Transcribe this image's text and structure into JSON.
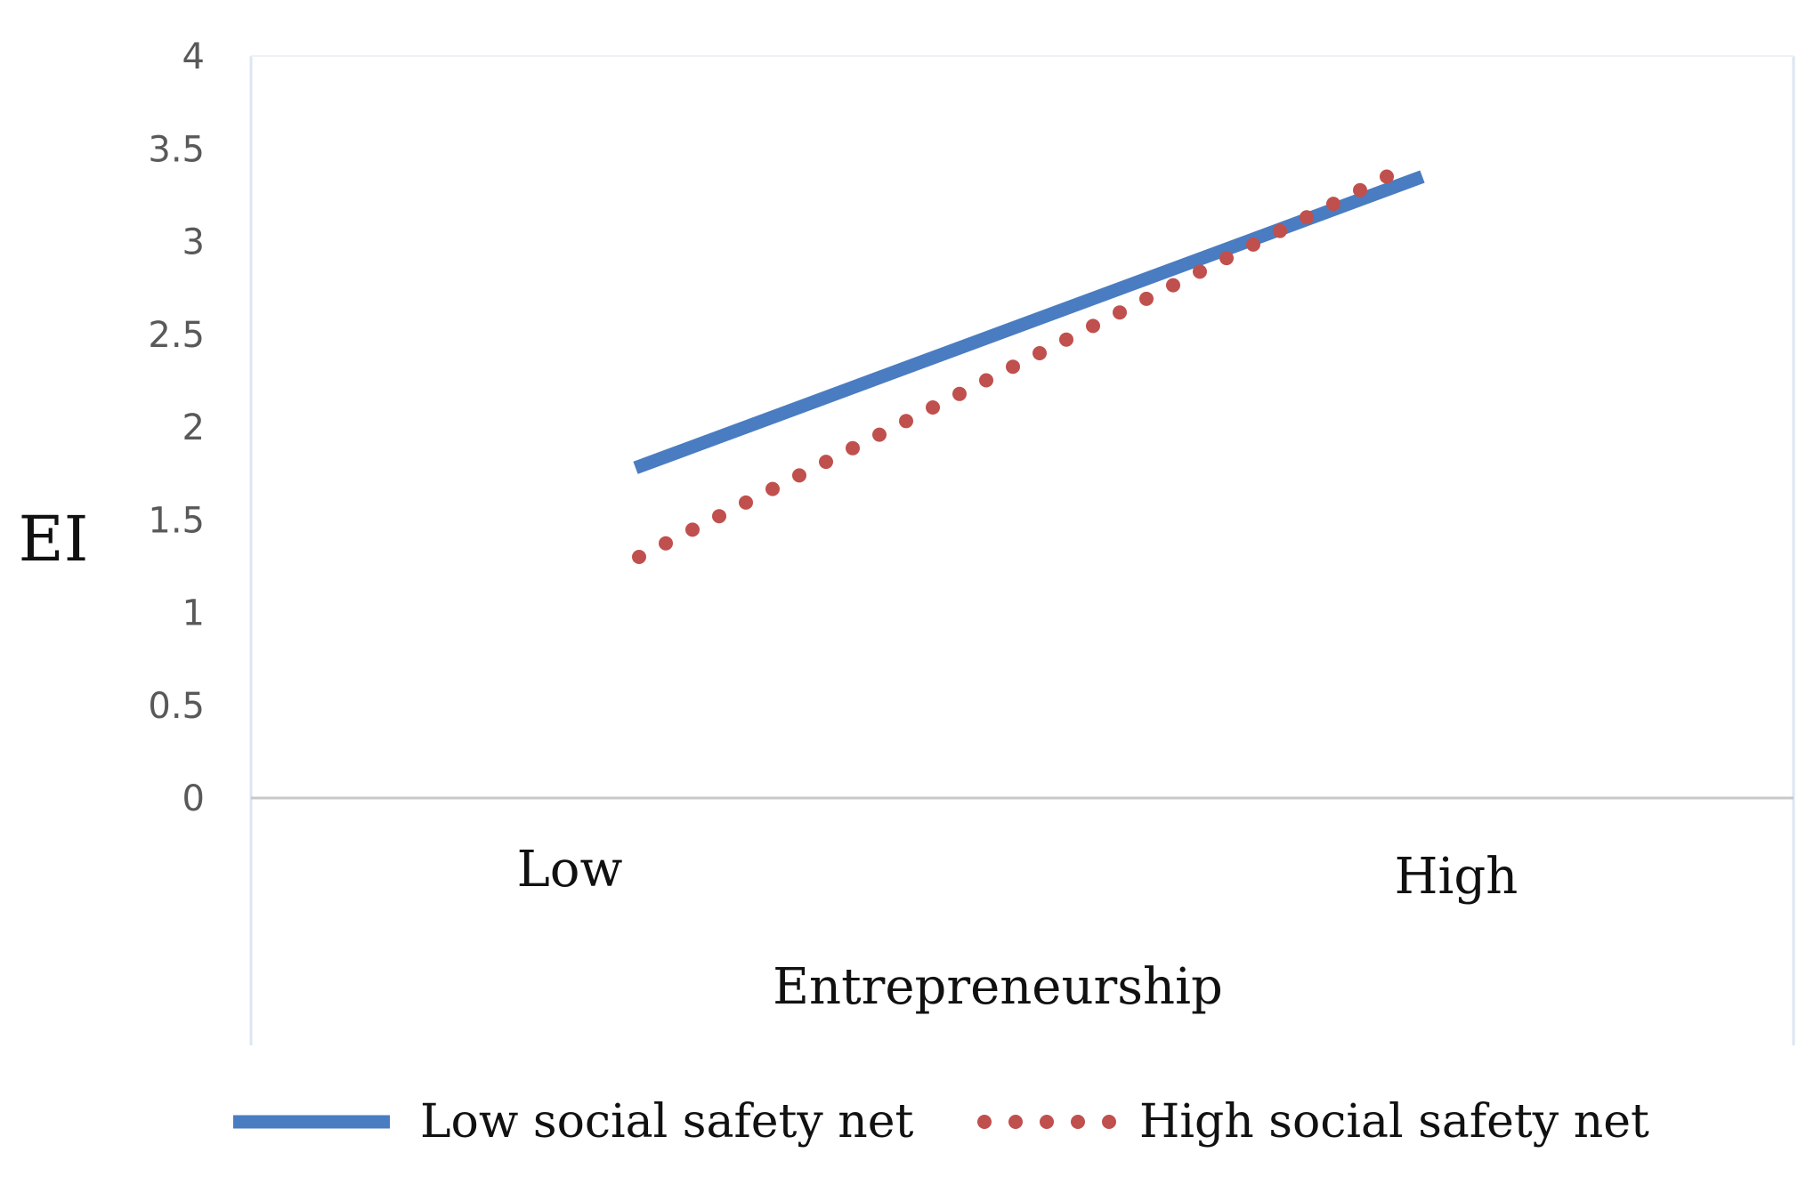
{
  "chart_data": {
    "type": "line",
    "title": "",
    "xlabel": "Entrepreneurship",
    "ylabel": "EI",
    "categories": [
      "Low",
      "High"
    ],
    "ylim": [
      0,
      4
    ],
    "yticks": [
      "0",
      "0.5",
      "1",
      "1.5",
      "2",
      "2.5",
      "3",
      "3.5",
      "4"
    ],
    "grid": false,
    "legend_position": "bottom",
    "series": [
      {
        "name": "Low social safety net",
        "values": [
          1.78,
          3.35
        ],
        "color": "#4a7cc1",
        "style": "solid"
      },
      {
        "name": "High social safety net",
        "values": [
          1.3,
          3.35
        ],
        "color": "#c0504d",
        "style": "dotted"
      }
    ]
  }
}
